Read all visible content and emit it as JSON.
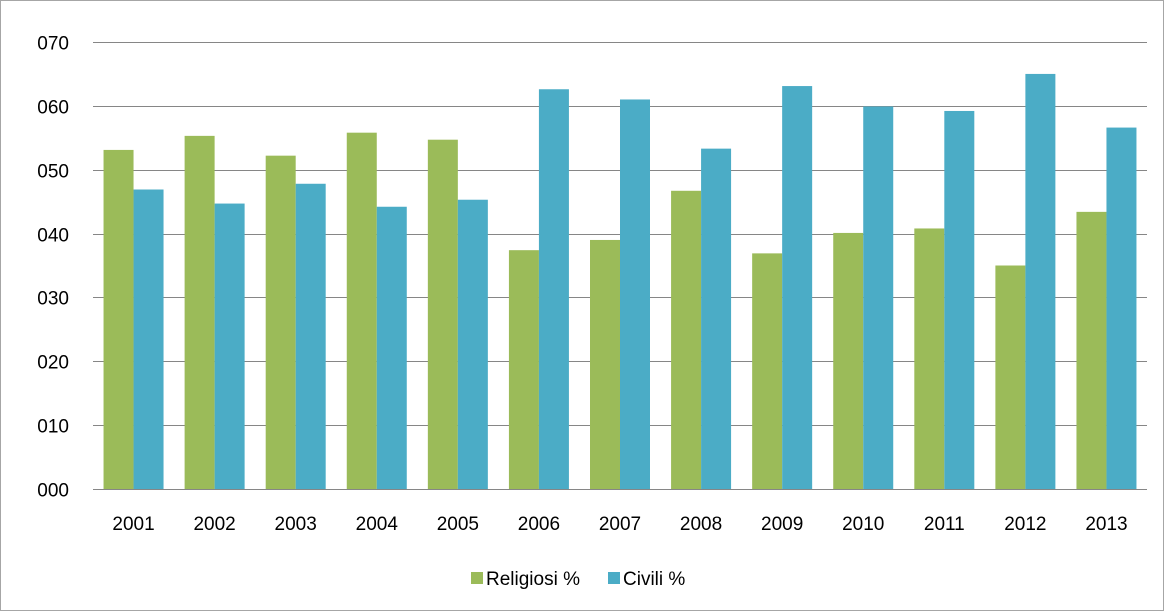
{
  "chart_data": {
    "type": "bar",
    "title": "",
    "xlabel": "",
    "ylabel": "",
    "categories": [
      "2001",
      "2002",
      "2003",
      "2004",
      "2005",
      "2006",
      "2007",
      "2008",
      "2009",
      "2010",
      "2011",
      "2012",
      "2013"
    ],
    "series": [
      {
        "name": "Religiosi %",
        "color": "#9bbb59",
        "values": [
          53.1,
          55.3,
          52.2,
          55.8,
          54.7,
          37.4,
          39.0,
          46.7,
          36.9,
          40.1,
          40.8,
          35.0,
          43.4
        ]
      },
      {
        "name": "Civili %",
        "color": "#4bacc6",
        "values": [
          46.9,
          44.7,
          47.8,
          44.2,
          45.3,
          62.6,
          61.0,
          53.3,
          63.1,
          59.9,
          59.2,
          65.0,
          56.6
        ]
      }
    ],
    "ylim": [
      0,
      70
    ],
    "yticks": [
      "000",
      "010",
      "020",
      "030",
      "040",
      "050",
      "060",
      "070"
    ],
    "ytick_values": [
      0,
      10,
      20,
      30,
      40,
      50,
      60,
      70
    ],
    "grid": true,
    "gridline_color": "#868686",
    "legend_position": "bottom"
  }
}
